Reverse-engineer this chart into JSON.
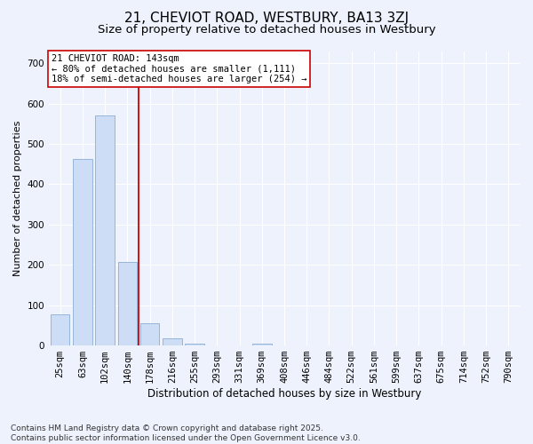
{
  "title_line1": "21, CHEVIOT ROAD, WESTBURY, BA13 3ZJ",
  "title_line2": "Size of property relative to detached houses in Westbury",
  "xlabel": "Distribution of detached houses by size in Westbury",
  "ylabel": "Number of detached properties",
  "categories": [
    "25sqm",
    "63sqm",
    "102sqm",
    "140sqm",
    "178sqm",
    "216sqm",
    "255sqm",
    "293sqm",
    "331sqm",
    "369sqm",
    "408sqm",
    "446sqm",
    "484sqm",
    "522sqm",
    "561sqm",
    "599sqm",
    "637sqm",
    "675sqm",
    "714sqm",
    "752sqm",
    "790sqm"
  ],
  "values": [
    78,
    462,
    570,
    207,
    55,
    18,
    5,
    0,
    0,
    5,
    0,
    0,
    0,
    0,
    0,
    0,
    0,
    0,
    0,
    0,
    0
  ],
  "bar_color": "#cdddf5",
  "bar_edge_color": "#8aadd4",
  "vline_index": 3,
  "vline_color": "#cc0000",
  "annotation_text": "21 CHEVIOT ROAD: 143sqm\n← 80% of detached houses are smaller (1,111)\n18% of semi-detached houses are larger (254) →",
  "annotation_box_facecolor": "#ffffff",
  "annotation_box_edgecolor": "#cc0000",
  "ylim": [
    0,
    730
  ],
  "yticks": [
    0,
    100,
    200,
    300,
    400,
    500,
    600,
    700
  ],
  "background_color": "#edf2fc",
  "grid_color": "#ffffff",
  "footnote": "Contains HM Land Registry data © Crown copyright and database right 2025.\nContains public sector information licensed under the Open Government Licence v3.0.",
  "title_fontsize": 11,
  "subtitle_fontsize": 9.5,
  "ylabel_fontsize": 8,
  "xlabel_fontsize": 8.5,
  "tick_fontsize": 7.5,
  "annotation_fontsize": 7.5,
  "footnote_fontsize": 6.5
}
